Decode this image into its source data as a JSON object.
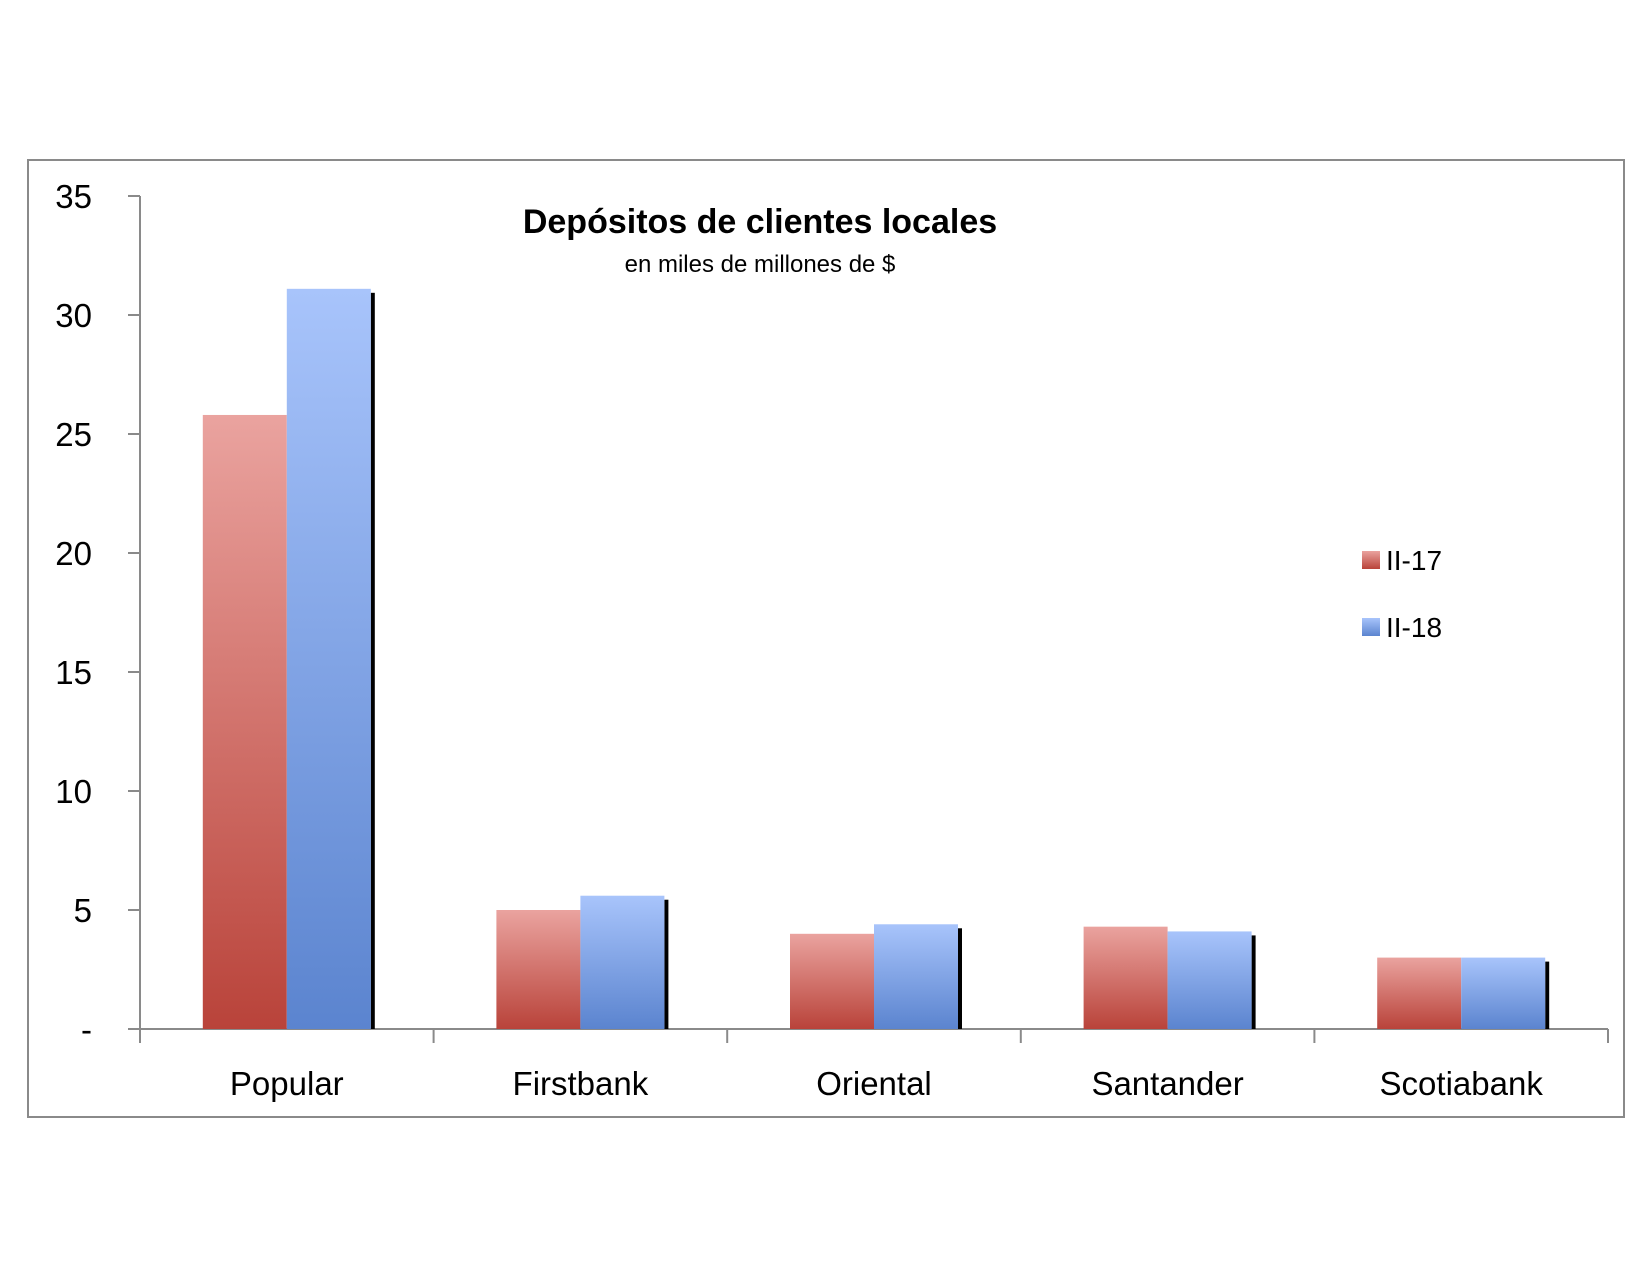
{
  "chart_data": {
    "type": "bar",
    "title": "Depósitos de clientes locales",
    "subtitle": "en miles de millones de $",
    "xlabel": "",
    "ylabel": "",
    "categories": [
      "Popular",
      "Firstbank",
      "Oriental",
      "Santander",
      "Scotiabank"
    ],
    "series": [
      {
        "name": "II-17",
        "values": [
          25.8,
          5.0,
          4.0,
          4.3,
          3.0
        ],
        "color_top": "#eaa39f",
        "color_bottom": "#b9433a"
      },
      {
        "name": "II-18",
        "values": [
          31.1,
          5.6,
          4.4,
          4.1,
          3.0
        ],
        "color_top": "#a8c4fb",
        "color_bottom": "#5b84cf"
      }
    ],
    "ylim": [
      0,
      35
    ],
    "yticks": [
      0,
      5,
      10,
      15,
      20,
      25,
      30,
      35
    ],
    "ytick_labels": [
      "-",
      "5",
      "10",
      "15",
      "20",
      "25",
      "30",
      "35"
    ],
    "grid": false,
    "legend_position": "right"
  }
}
